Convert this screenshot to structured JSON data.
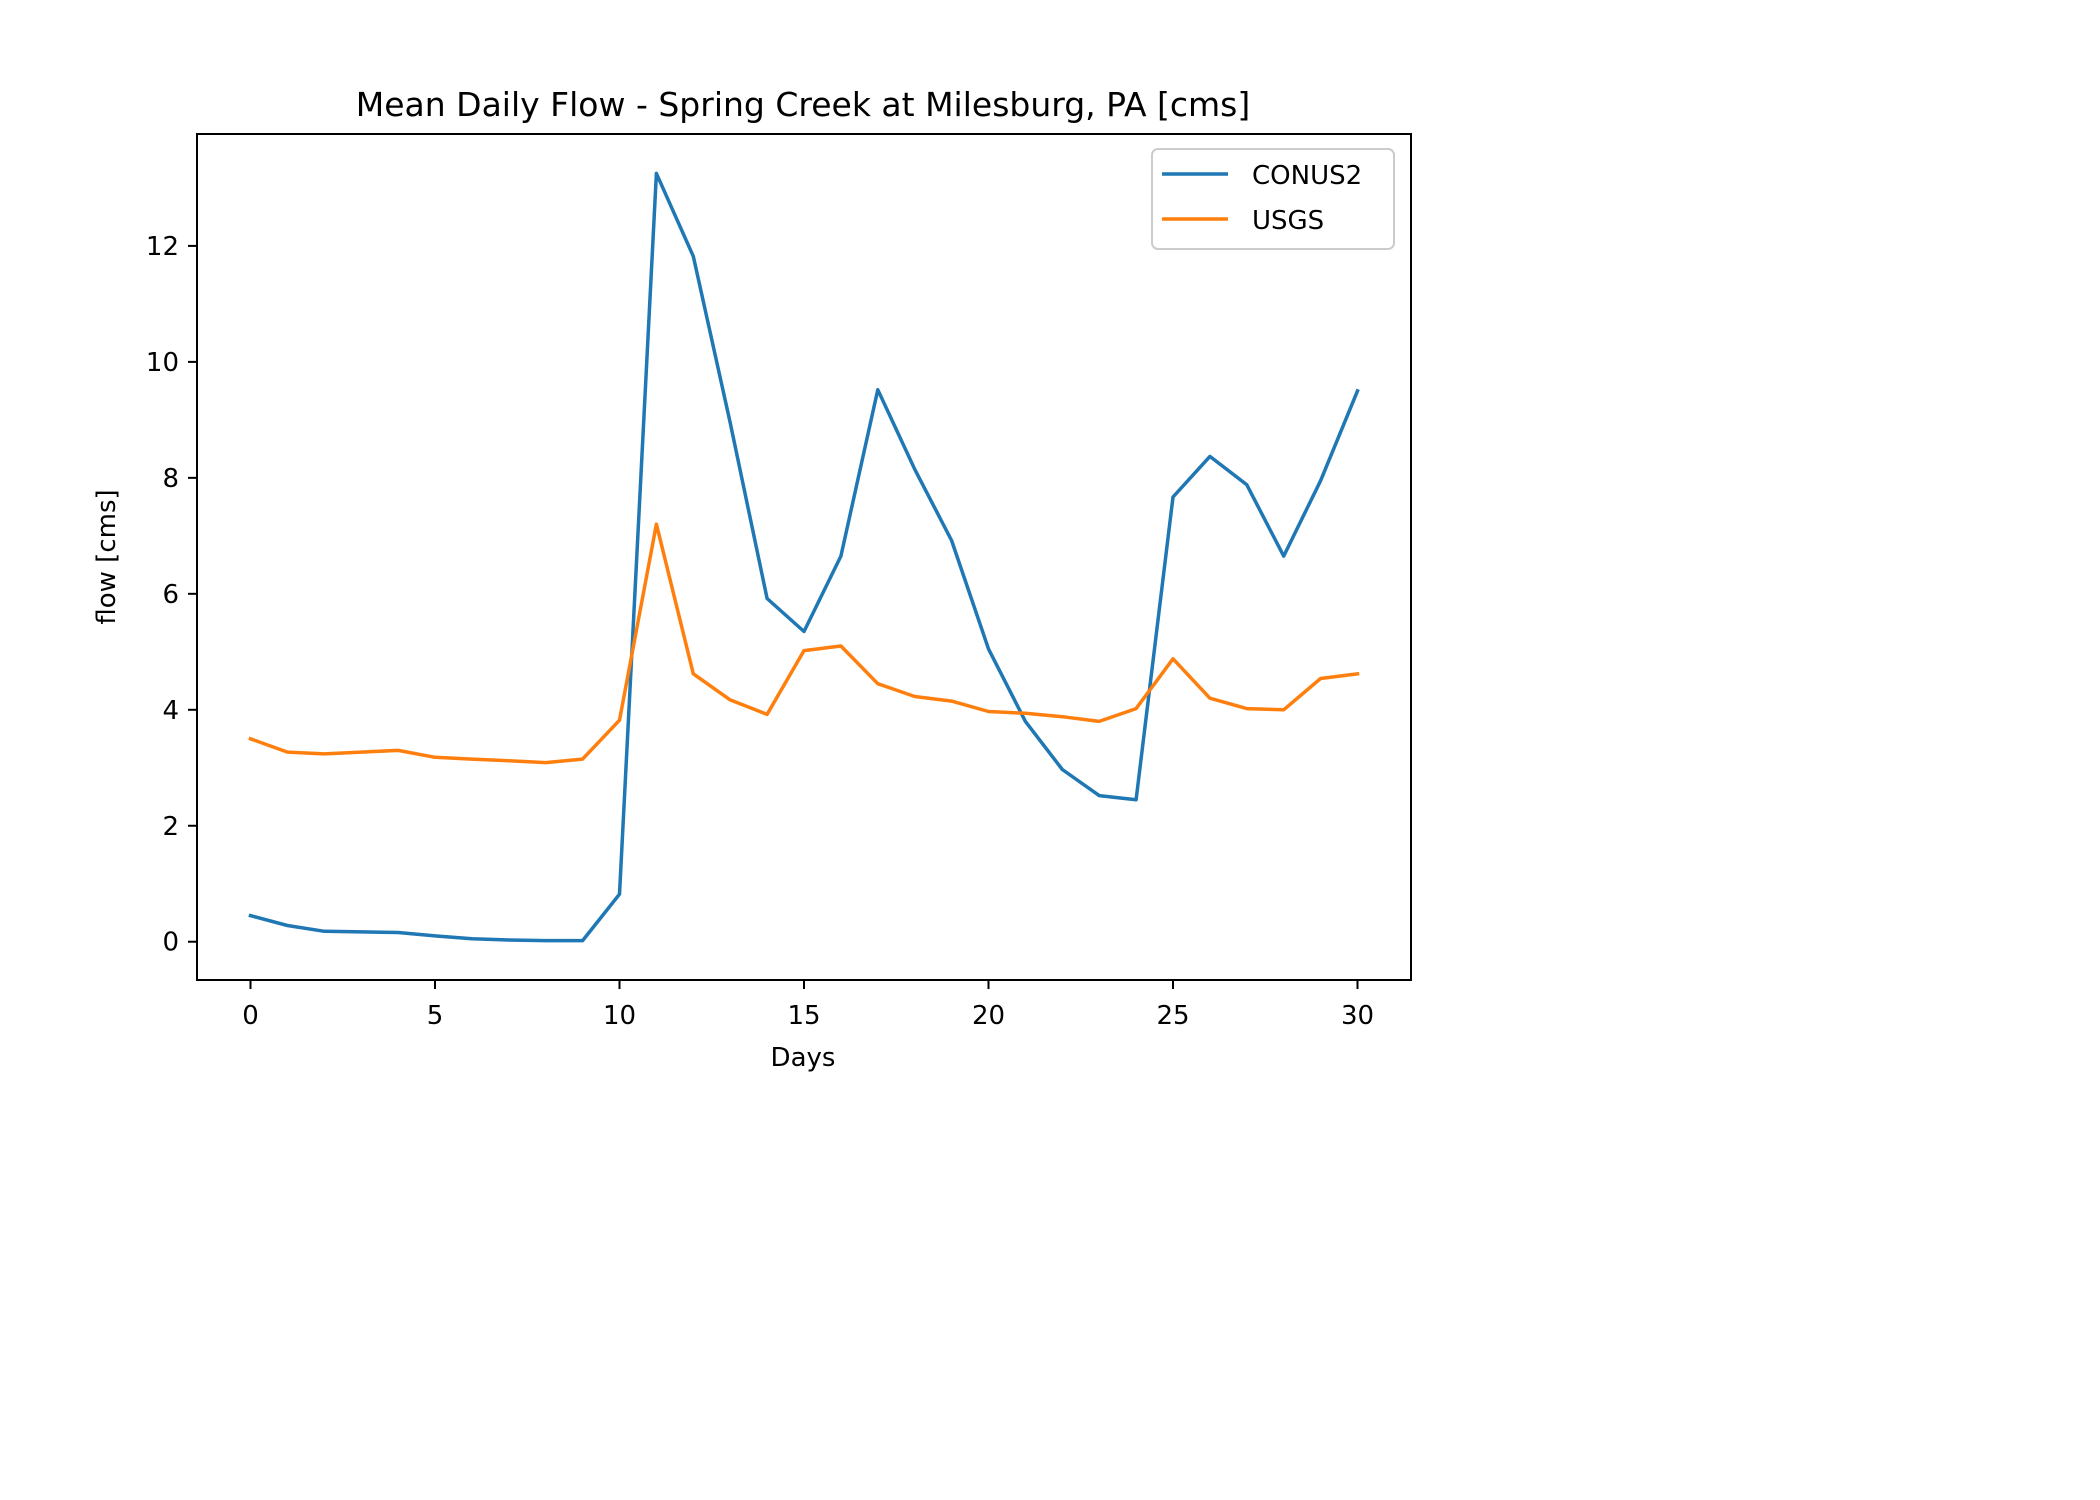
{
  "chart_data": {
    "type": "line",
    "title": "Mean Daily Flow - Spring Creek at Milesburg, PA [cms]",
    "xlabel": "Days",
    "ylabel": "flow [cms]",
    "xlim": [
      -1.45,
      31.45
    ],
    "ylim": [
      -0.66,
      13.93
    ],
    "xticks": [
      0,
      5,
      10,
      15,
      20,
      25,
      30
    ],
    "yticks": [
      0,
      2,
      4,
      6,
      8,
      10,
      12
    ],
    "grid": false,
    "legend_position": "top-right",
    "x": [
      0,
      1,
      2,
      3,
      4,
      5,
      6,
      7,
      8,
      9,
      10,
      11,
      12,
      13,
      14,
      15,
      16,
      17,
      18,
      19,
      20,
      21,
      22,
      23,
      24,
      25,
      26,
      27,
      28,
      29,
      30
    ],
    "series": [
      {
        "name": "CONUS2",
        "color": "#1f77b4",
        "values": [
          0.45,
          0.28,
          0.18,
          0.17,
          0.16,
          0.1,
          0.05,
          0.03,
          0.02,
          0.02,
          0.82,
          13.25,
          11.82,
          8.95,
          5.92,
          5.35,
          6.65,
          9.52,
          8.15,
          6.92,
          5.05,
          3.8,
          2.97,
          2.52,
          2.45,
          7.67,
          8.37,
          7.88,
          6.65,
          7.95,
          9.5
        ]
      },
      {
        "name": "USGS",
        "color": "#ff7f0e",
        "values": [
          3.5,
          3.27,
          3.24,
          3.27,
          3.3,
          3.18,
          3.15,
          3.12,
          3.09,
          3.15,
          3.82,
          7.2,
          4.62,
          4.17,
          3.92,
          5.02,
          5.1,
          4.45,
          4.23,
          4.15,
          3.97,
          3.94,
          3.88,
          3.8,
          4.02,
          4.88,
          4.2,
          4.02,
          4.0,
          4.54,
          4.62
        ]
      }
    ]
  }
}
